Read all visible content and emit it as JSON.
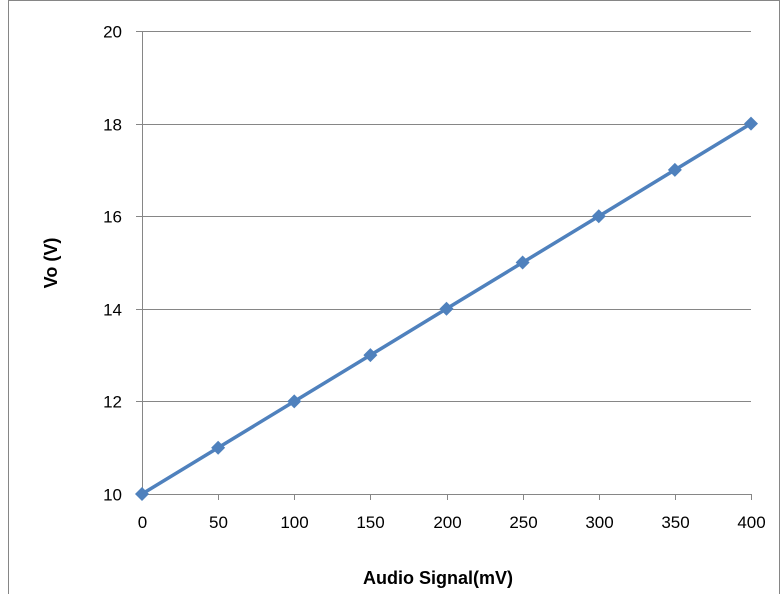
{
  "chart_data": {
    "type": "line",
    "title": "",
    "xlabel": "Audio Signal(mV)",
    "ylabel": "Vo (V)",
    "xlim": [
      0,
      400
    ],
    "ylim": [
      10,
      20
    ],
    "x_ticks": [
      0,
      50,
      100,
      150,
      200,
      250,
      300,
      350,
      400
    ],
    "y_ticks": [
      10,
      12,
      14,
      16,
      18,
      20
    ],
    "grid": {
      "horizontal": true,
      "vertical": false
    },
    "legend": "none",
    "series": [
      {
        "color": "#4f81bd",
        "marker": "diamond",
        "x": [
          0,
          50,
          100,
          150,
          200,
          250,
          300,
          350,
          400
        ],
        "y": [
          10,
          11,
          12,
          13,
          14,
          15,
          16,
          17,
          18
        ]
      }
    ]
  },
  "style": {
    "frame_color": "#868686",
    "grid_color": "#868686",
    "axis_color": "#868686"
  }
}
